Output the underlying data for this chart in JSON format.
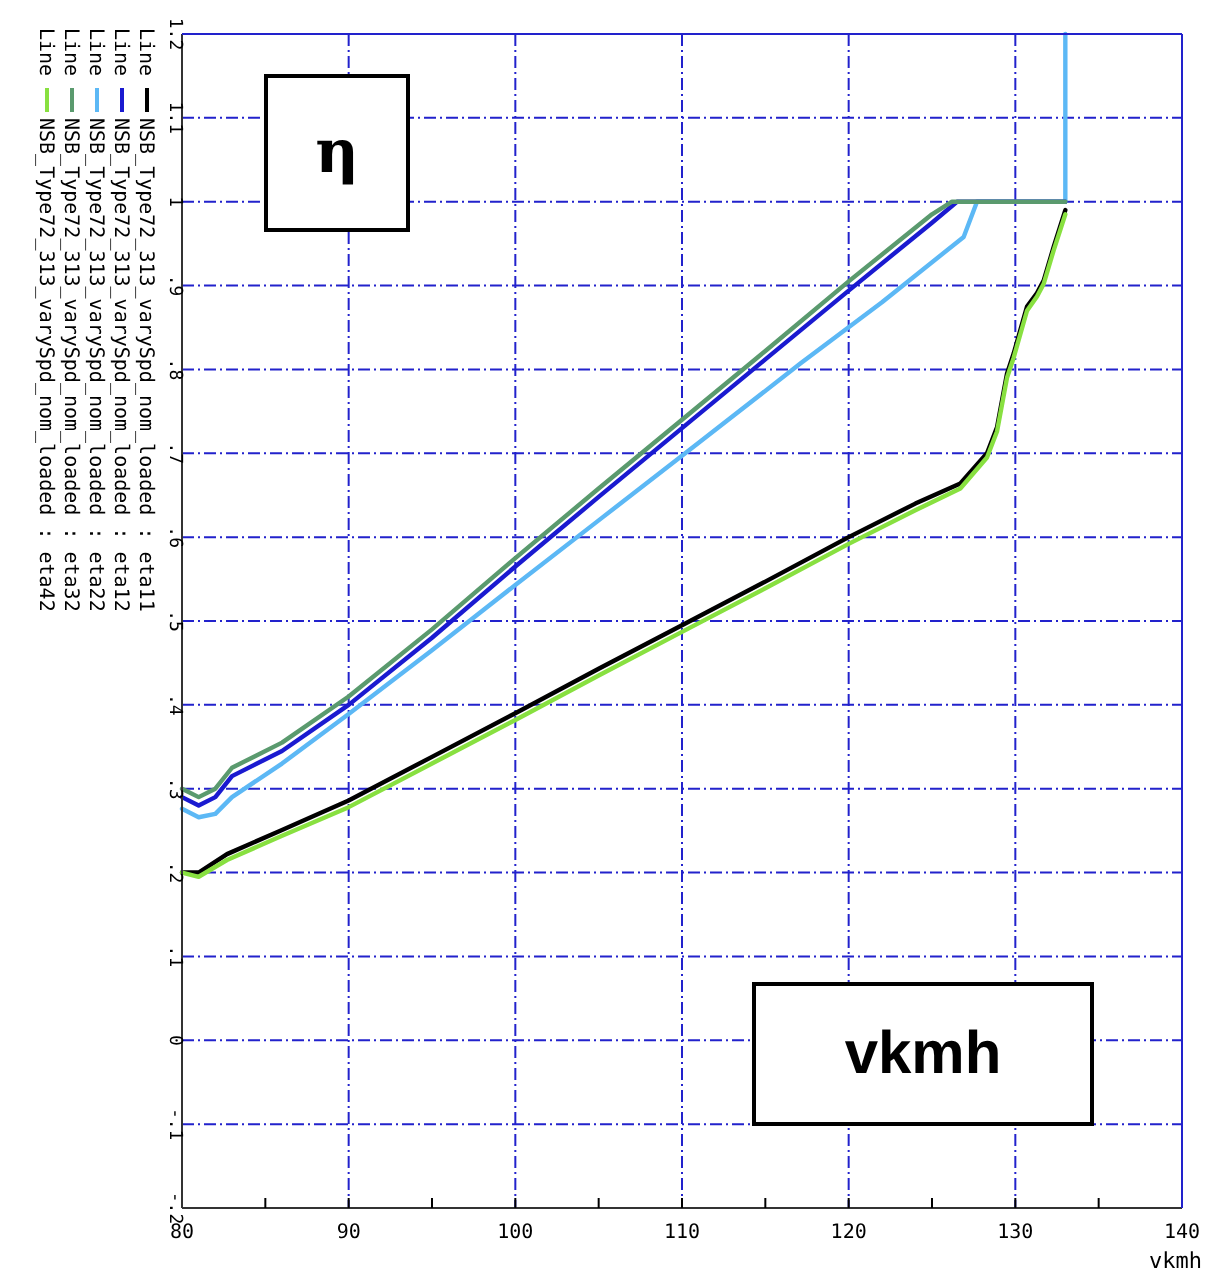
{
  "chart_data": {
    "type": "line",
    "xlabel": "vkmh",
    "annotations": [
      "η",
      "vkmh",
      "Line"
    ],
    "xlim": [
      80,
      140
    ],
    "xticks": [
      80,
      {
        "value": 85,
        "label": null
      },
      90,
      {
        "value": 95,
        "label": null
      },
      100,
      {
        "value": 105,
        "label": null
      },
      110,
      {
        "value": 115,
        "label": null
      },
      120,
      {
        "value": 125,
        "label": null
      },
      130,
      {
        "value": 135,
        "label": null
      },
      140
    ],
    "ylim": [
      -0.2,
      1.2
    ],
    "yticks": [
      {
        "value": -0.2,
        "label": "-.2"
      },
      {
        "value": -0.1,
        "label": "-.1"
      },
      0,
      {
        "value": 0.1,
        "label": ".1"
      },
      {
        "value": 0.2,
        "label": ".2"
      },
      {
        "value": 0.3,
        "label": ".3"
      },
      {
        "value": 0.4,
        "label": ".4"
      },
      {
        "value": 0.5,
        "label": ".5"
      },
      {
        "value": 0.6,
        "label": ".6"
      },
      {
        "value": 0.7,
        "label": ".7"
      },
      {
        "value": 0.8,
        "label": ".8"
      },
      {
        "value": 0.9,
        "label": ".9"
      },
      1,
      {
        "value": 1.1,
        "label": "1.1"
      },
      {
        "value": 1.2,
        "label": "1.2"
      }
    ],
    "grid": true,
    "legend": "left",
    "marker": "none",
    "line_style": "solid",
    "series": [
      {
        "name": "NSB_Type72_313_varySpd_nom_loaded : eta11",
        "color": "#000000",
        "x": [
          80,
          81,
          82.7,
          85.9,
          90,
          95,
          100,
          105,
          110,
          115,
          120,
          124,
          126.7,
          128.3,
          128.9,
          129.5,
          129.9,
          130.7,
          131.3,
          131.7,
          132.3,
          133
        ],
        "values": [
          0.2,
          0.2,
          0.222,
          0.25,
          0.286,
          0.338,
          0.39,
          0.443,
          0.495,
          0.547,
          0.6,
          0.64,
          0.664,
          0.7,
          0.731,
          0.795,
          0.819,
          0.875,
          0.891,
          0.906,
          0.946,
          0.99
        ]
      },
      {
        "name": "NSB_Type72_313_varySpd_nom_loaded : eta12",
        "color": "#1a1ad0",
        "x": [
          80,
          81,
          82,
          83,
          86,
          90,
          95,
          100,
          105,
          110,
          115,
          120,
          125,
          126.5,
          133
        ],
        "values": [
          0.29,
          0.28,
          0.29,
          0.315,
          0.345,
          0.4,
          0.48,
          0.565,
          0.648,
          0.73,
          0.812,
          0.894,
          0.975,
          1.0,
          1.0
        ]
      },
      {
        "name": "NSB_Type72_313_varySpd_nom_loaded : eta22",
        "color": "#5cb8f5",
        "x": [
          80,
          81,
          82,
          83,
          86,
          90,
          95,
          100,
          105,
          110,
          117.1,
          122,
          126.9,
          127.7,
          133,
          133
        ],
        "values": [
          0.276,
          0.266,
          0.27,
          0.29,
          0.33,
          0.389,
          0.465,
          0.543,
          0.62,
          0.697,
          0.807,
          0.88,
          0.958,
          1.0,
          1.0,
          1.2
        ]
      },
      {
        "name": "NSB_Type72_313_varySpd_nom_loaded : eta32",
        "color": "#5a9a6e",
        "x": [
          80,
          81,
          82,
          83,
          86,
          90,
          95,
          100,
          105,
          110,
          115,
          120,
          125,
          126.2,
          133
        ],
        "values": [
          0.3,
          0.29,
          0.3,
          0.325,
          0.355,
          0.41,
          0.49,
          0.575,
          0.658,
          0.74,
          0.822,
          0.905,
          0.985,
          1.0,
          1.0
        ]
      },
      {
        "name": "NSB_Type72_313_varySpd_nom_loaded : eta42",
        "color": "#88e040",
        "x": [
          80,
          81,
          82.7,
          85.9,
          90,
          95,
          100,
          105,
          110,
          115,
          120,
          124,
          126.7,
          128.3,
          128.9,
          129.5,
          129.9,
          130.7,
          131.3,
          131.7,
          132.3,
          133
        ],
        "values": [
          0.2,
          0.195,
          0.215,
          0.243,
          0.278,
          0.33,
          0.382,
          0.435,
          0.487,
          0.539,
          0.592,
          0.632,
          0.658,
          0.695,
          0.726,
          0.79,
          0.814,
          0.87,
          0.887,
          0.902,
          0.942,
          0.985
        ]
      }
    ]
  }
}
